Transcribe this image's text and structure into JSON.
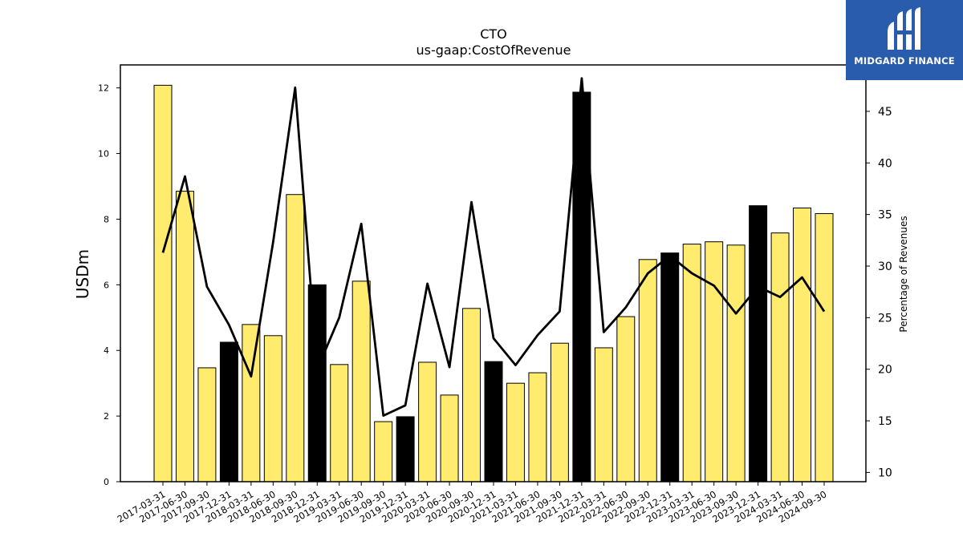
{
  "header": {
    "title": "CTO",
    "subtitle": "us-gaap:CostOfRevenue"
  },
  "logo": {
    "text": "MIDGARD FINANCE",
    "background": "#2a5cad"
  },
  "colors": {
    "bar_regular": "#ffec6e",
    "bar_highlight": "#000000",
    "line": "#000000"
  },
  "chart_data": {
    "type": "bar",
    "xlabel": "",
    "ylabel": "USDm",
    "y2label": "Percentage of Revenues",
    "ylim": [
      0,
      12.7
    ],
    "y2lim": [
      9.1,
      49.5
    ],
    "yticks": [
      0,
      2,
      4,
      6,
      8,
      10,
      12
    ],
    "y2ticks": [
      10,
      15,
      20,
      25,
      30,
      35,
      40,
      45
    ],
    "grid": false,
    "categories": [
      "2017-03-31",
      "2017-06-30",
      "2017-09-30",
      "2017-12-31",
      "2018-03-31",
      "2018-06-30",
      "2018-09-30",
      "2018-12-31",
      "2019-03-31",
      "2019-06-30",
      "2019-09-30",
      "2019-12-31",
      "2020-03-31",
      "2020-06-30",
      "2020-09-30",
      "2020-12-31",
      "2021-03-31",
      "2021-06-30",
      "2021-09-30",
      "2021-12-31",
      "2022-03-31",
      "2022-06-30",
      "2022-09-30",
      "2022-12-31",
      "2023-03-31",
      "2023-06-30",
      "2023-09-30",
      "2023-12-31",
      "2024-03-31",
      "2024-06-30",
      "2024-09-30"
    ],
    "series": [
      {
        "type": "bar",
        "axis": "left",
        "values": [
          12.08,
          8.85,
          3.47,
          4.25,
          4.79,
          4.45,
          8.75,
          6.0,
          3.57,
          6.11,
          1.83,
          1.98,
          3.64,
          2.64,
          5.28,
          3.66,
          3.0,
          3.32,
          4.22,
          11.87,
          4.08,
          5.03,
          6.77,
          6.97,
          7.24,
          7.31,
          7.21,
          8.41,
          7.58,
          8.34,
          8.17
        ],
        "highlighted": [
          false,
          false,
          false,
          true,
          false,
          false,
          false,
          true,
          false,
          false,
          false,
          true,
          false,
          false,
          false,
          true,
          false,
          false,
          false,
          true,
          false,
          false,
          false,
          true,
          false,
          false,
          false,
          true,
          false,
          false,
          false
        ]
      },
      {
        "type": "line",
        "axis": "right",
        "values": [
          31.3,
          38.7,
          28.0,
          24.3,
          19.3,
          32.3,
          47.3,
          20.0,
          25.0,
          34.1,
          15.5,
          16.5,
          28.3,
          20.2,
          36.2,
          23.0,
          20.4,
          23.3,
          25.6,
          48.2,
          23.6,
          26.0,
          29.3,
          31.0,
          29.3,
          28.1,
          25.4,
          28.0,
          27.0,
          28.9,
          25.6
        ]
      }
    ]
  }
}
